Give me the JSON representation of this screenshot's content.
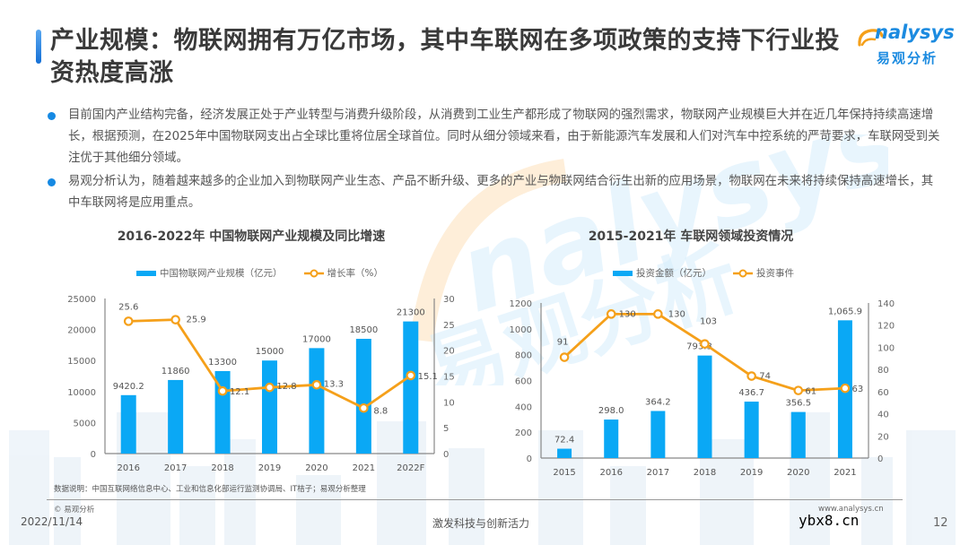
{
  "slide": {
    "title": "产业规模：物联网拥有万亿市场，其中车联网在多项政策的支持下行业投资热度高涨",
    "logo_en": "nalysys",
    "logo_cn": "易观分析",
    "bullets": [
      "目前国内产业结构完备，经济发展正处于产业转型与消费升级阶段，从消费到工业生产都形成了物联网的强烈需求，物联网产业规模巨大并在近几年保持持续高速增长，根据预测，在2025年中国物联网支出占全球比重将位居全球首位。同时从细分领域来看，由于新能源汽车发展和人们对汽车中控系统的严苛要求，车联网受到关注优于其他细分领域。",
      "易观分析认为，随着越来越多的企业加入到物联网产业生态、产品不断升级、更多的产业与物联网结合衍生出新的应用场景，物联网在未来将持续保持高速增长，其中车联网将是应用重点。"
    ],
    "watermark_en": "nalysys",
    "watermark_cn": "易观分析"
  },
  "colors": {
    "bar": "#0aa8f5",
    "line": "#f5a01a",
    "accent": "#1589e3",
    "text": "#444444"
  },
  "chart_data": [
    {
      "type": "bar",
      "combo": "bar+line",
      "title": "2016-2022年 中国物联网产业规模及同比增速",
      "categories": [
        "2016",
        "2017",
        "2018",
        "2019",
        "2020",
        "2021",
        "2022F"
      ],
      "series": [
        {
          "name": "中国物联网产业规模（亿元）",
          "type": "bar",
          "axis": "left",
          "values": [
            9420.2,
            11860,
            13300,
            15000,
            17000,
            18500,
            21300
          ],
          "labels": [
            "9420.2",
            "11860",
            "13300",
            "15000",
            "17000",
            "18500",
            "21300"
          ]
        },
        {
          "name": "增长率（%）",
          "type": "line",
          "axis": "right",
          "values": [
            25.6,
            25.9,
            12.1,
            12.8,
            13.3,
            8.8,
            15.1
          ],
          "labels": [
            "25.6",
            "25.9",
            "12.1",
            "12.8",
            "13.3",
            "8.8",
            "15.1"
          ]
        }
      ],
      "ylim": [
        0,
        25000
      ],
      "y_ticks": [
        "0",
        "5000",
        "10000",
        "15000",
        "20000",
        "25000"
      ],
      "y2lim": [
        0,
        30
      ],
      "y2_ticks": [
        "0",
        "5",
        "10",
        "15",
        "20",
        "25",
        "30"
      ],
      "legend_position": "top",
      "grid": false,
      "xlabel": "",
      "ylabel": ""
    },
    {
      "type": "bar",
      "combo": "bar+line",
      "title": "2015-2021年 车联网领域投资情况",
      "categories": [
        "2015",
        "2016",
        "2017",
        "2018",
        "2019",
        "2020",
        "2021"
      ],
      "series": [
        {
          "name": "投资金额（亿元）",
          "type": "bar",
          "axis": "left",
          "values": [
            72.4,
            298.0,
            364.2,
            793.3,
            436.7,
            356.5,
            1065.9
          ],
          "labels": [
            "72.4",
            "298.0",
            "364.2",
            "793.3",
            "436.7",
            "356.5",
            "1,065.9"
          ]
        },
        {
          "name": "投资事件",
          "type": "line",
          "axis": "right",
          "values": [
            91,
            130,
            130,
            103,
            74,
            61,
            63
          ],
          "labels": [
            "91",
            "130",
            "130",
            "103",
            "74",
            "61",
            "63"
          ]
        }
      ],
      "ylim": [
        0,
        1200
      ],
      "y_ticks": [
        "0",
        "200",
        "400",
        "600",
        "800",
        "1000",
        "1200"
      ],
      "y2lim": [
        0,
        140
      ],
      "y2_ticks": [
        "0",
        "20",
        "40",
        "60",
        "80",
        "100",
        "120",
        "140"
      ],
      "legend_position": "top",
      "grid": false,
      "xlabel": "",
      "ylabel": ""
    }
  ],
  "footer": {
    "source": "数据说明：中国互联网络信息中心、工业和信息化部运行监测协调局、IT桔子；易观分析整理",
    "copyright": "© 易观分析",
    "date": "2022/11/14",
    "slogan": "激发科技与创新活力",
    "site": "www.analysys.cn",
    "watermark_site": "ybx8.cn",
    "page": "12"
  }
}
